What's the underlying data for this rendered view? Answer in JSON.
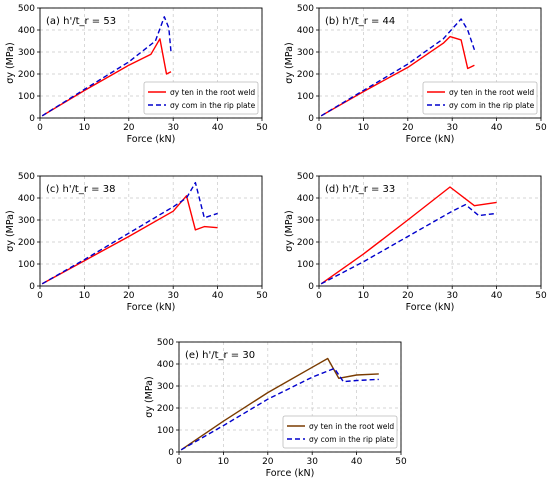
{
  "chart_data": [
    {
      "type": "line",
      "panel_label": "(a)",
      "ratio_label": "h'/t_r = 53",
      "xlabel": "Force (kN)",
      "ylabel": "σy (MPa)",
      "xlim": [
        0,
        50
      ],
      "ylim": [
        0,
        500
      ],
      "xticks": [
        0,
        10,
        20,
        30,
        40,
        50
      ],
      "yticks": [
        0,
        100,
        200,
        300,
        400,
        500
      ],
      "grid": true,
      "legend_position": "bottom-right",
      "series": [
        {
          "name": "σy ten in the root weld",
          "color": "#ff0000",
          "style": "solid",
          "x": [
            0.5,
            10,
            20,
            25,
            27,
            28.5,
            29.5
          ],
          "y": [
            10,
            125,
            240,
            290,
            360,
            200,
            210
          ]
        },
        {
          "name": "σy com in the rip plate",
          "color": "#0000cc",
          "style": "dashed",
          "x": [
            0.5,
            10,
            20,
            26,
            28,
            29,
            29.5
          ],
          "y": [
            10,
            130,
            255,
            350,
            460,
            410,
            300
          ]
        }
      ]
    },
    {
      "type": "line",
      "panel_label": "(b)",
      "ratio_label": "h'/t_r = 44",
      "xlabel": "Force (kN)",
      "ylabel": "σy (MPa)",
      "xlim": [
        0,
        50
      ],
      "ylim": [
        0,
        500
      ],
      "xticks": [
        0,
        10,
        20,
        30,
        40,
        50
      ],
      "yticks": [
        0,
        100,
        200,
        300,
        400,
        500
      ],
      "grid": true,
      "legend_position": "bottom-right",
      "series": [
        {
          "name": "σy ten in the root weld",
          "color": "#ff0000",
          "style": "solid",
          "x": [
            0.5,
            10,
            20,
            28,
            29.5,
            32,
            33.5,
            35
          ],
          "y": [
            10,
            120,
            230,
            340,
            370,
            355,
            225,
            240
          ]
        },
        {
          "name": "σy com in the rip plate",
          "color": "#0000cc",
          "style": "dashed",
          "x": [
            0.5,
            10,
            20,
            28,
            32,
            33.5,
            35
          ],
          "y": [
            10,
            125,
            245,
            360,
            450,
            400,
            310
          ]
        }
      ]
    },
    {
      "type": "line",
      "panel_label": "(c)",
      "ratio_label": "h'/t_r = 38",
      "xlabel": "Force (kN)",
      "ylabel": "σy (MPa)",
      "xlim": [
        0,
        50
      ],
      "ylim": [
        0,
        500
      ],
      "xticks": [
        0,
        10,
        20,
        30,
        40,
        50
      ],
      "yticks": [
        0,
        100,
        200,
        300,
        400,
        500
      ],
      "grid": true,
      "legend_position": "none",
      "series": [
        {
          "name": "",
          "color": "#ff0000",
          "style": "solid",
          "x": [
            0.5,
            10,
            20,
            30,
            33,
            35,
            37,
            40
          ],
          "y": [
            10,
            115,
            225,
            340,
            410,
            255,
            270,
            265
          ]
        },
        {
          "name": "",
          "color": "#0000cc",
          "style": "dashed",
          "x": [
            0.5,
            10,
            20,
            30,
            33,
            35,
            37,
            40
          ],
          "y": [
            10,
            120,
            240,
            360,
            400,
            470,
            310,
            330
          ]
        }
      ]
    },
    {
      "type": "line",
      "panel_label": "(d)",
      "ratio_label": "h'/t_r = 33",
      "xlabel": "Force (kN)",
      "ylabel": "σy (MPa)",
      "xlim": [
        0,
        50
      ],
      "ylim": [
        0,
        500
      ],
      "xticks": [
        0,
        10,
        20,
        30,
        40,
        50
      ],
      "yticks": [
        0,
        100,
        200,
        300,
        400,
        500
      ],
      "grid": true,
      "legend_position": "none",
      "series": [
        {
          "name": "",
          "color": "#ff0000",
          "style": "solid",
          "x": [
            0.5,
            10,
            20,
            29.5,
            35,
            40
          ],
          "y": [
            10,
            145,
            300,
            450,
            365,
            380
          ]
        },
        {
          "name": "",
          "color": "#0000cc",
          "style": "dashed",
          "x": [
            0.5,
            10,
            20,
            30,
            33,
            36,
            40
          ],
          "y": [
            10,
            110,
            225,
            340,
            370,
            320,
            330
          ]
        }
      ]
    },
    {
      "type": "line",
      "panel_label": "(e)",
      "ratio_label": "h'/t_r = 30",
      "xlabel": "Force (kN)",
      "ylabel": "σy (MPa)",
      "xlim": [
        0,
        50
      ],
      "ylim": [
        0,
        500
      ],
      "xticks": [
        0,
        10,
        20,
        30,
        40,
        50
      ],
      "yticks": [
        0,
        100,
        200,
        300,
        400,
        500
      ],
      "grid": true,
      "legend_position": "bottom-right",
      "series": [
        {
          "name": "σy ten in the root weld",
          "color": "#7a3b00",
          "style": "solid",
          "x": [
            0.5,
            10,
            20,
            30,
            33.5,
            36,
            40,
            45
          ],
          "y": [
            10,
            140,
            270,
            385,
            425,
            335,
            350,
            355
          ]
        },
        {
          "name": "σy com in the rip plate",
          "color": "#0000cc",
          "style": "dashed",
          "x": [
            0.5,
            10,
            20,
            30,
            35,
            37,
            40,
            45
          ],
          "y": [
            10,
            120,
            240,
            340,
            380,
            320,
            325,
            330
          ]
        }
      ]
    }
  ]
}
